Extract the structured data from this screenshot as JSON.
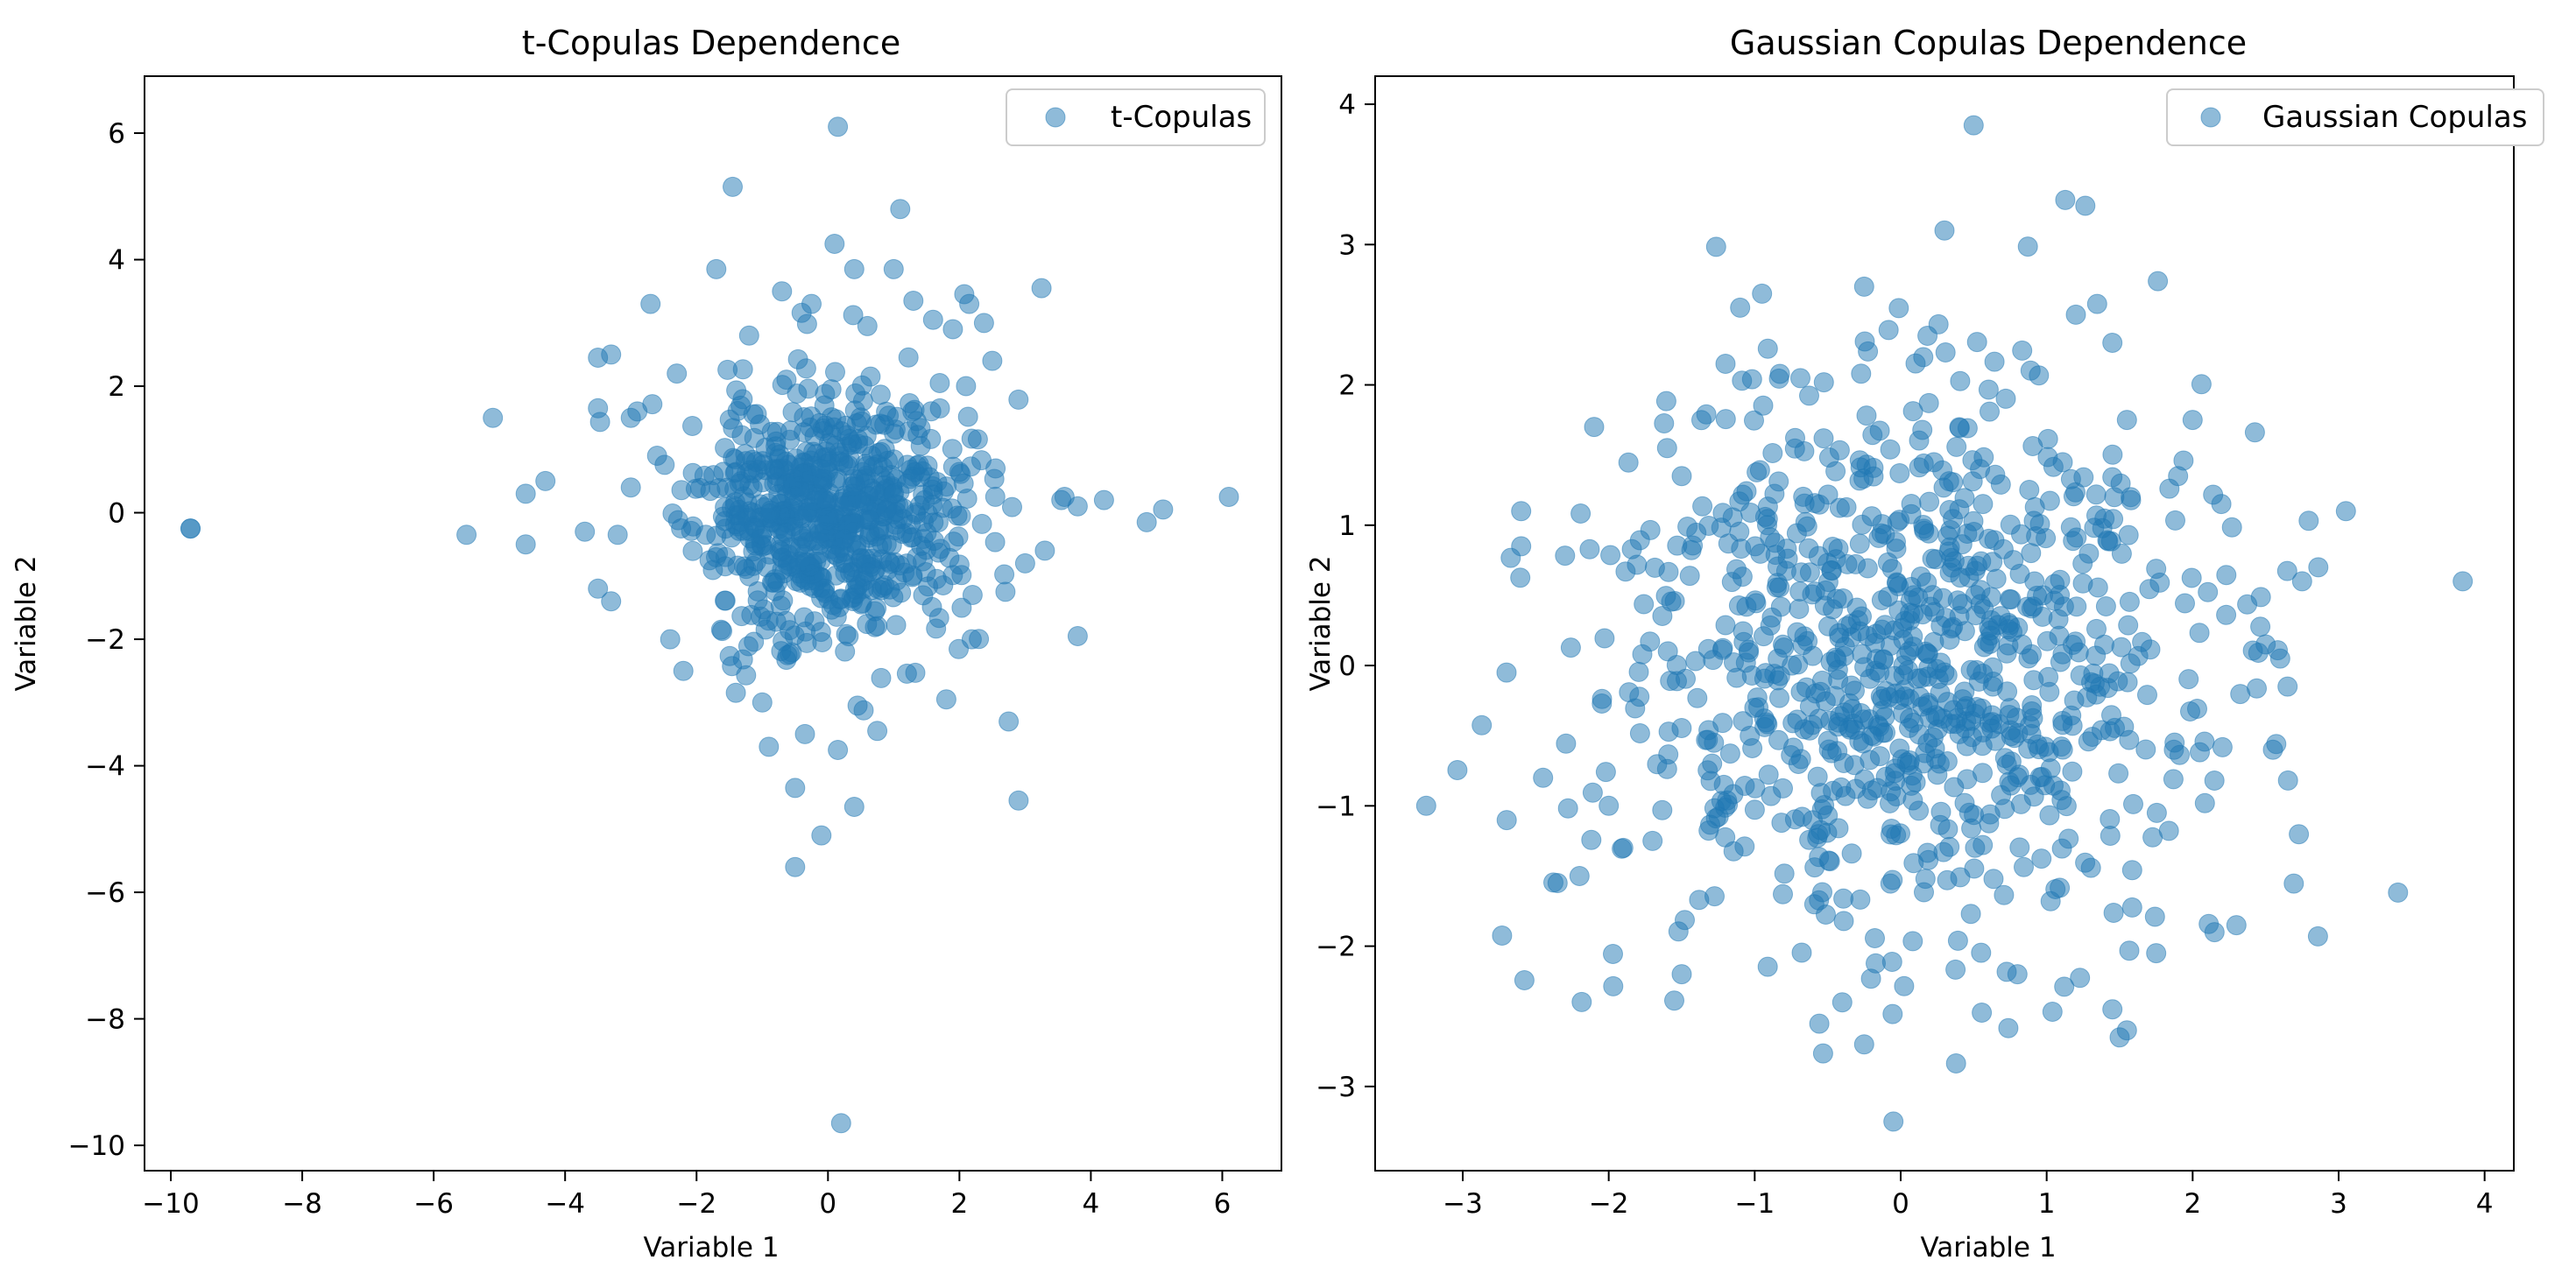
{
  "figure": {
    "background": "#ffffff",
    "marker_color": "#1f77b4",
    "marker_alpha": 0.5
  },
  "chart_data": [
    {
      "type": "scatter",
      "title": "t-Copulas Dependence",
      "xlabel": "Variable 1",
      "ylabel": "Variable 2",
      "xlim": [
        -10.4,
        6.9
      ],
      "ylim": [
        -10.4,
        6.9
      ],
      "xticks": [
        -10,
        -8,
        -6,
        -4,
        -2,
        0,
        2,
        4,
        6
      ],
      "yticks": [
        -10,
        -8,
        -6,
        -4,
        -2,
        0,
        2,
        4,
        6
      ],
      "xtick_labels": [
        "−10",
        "−8",
        "−6",
        "−4",
        "−2",
        "0",
        "2",
        "4",
        "6"
      ],
      "ytick_labels": [
        "−10",
        "−8",
        "−6",
        "−4",
        "−2",
        "0",
        "2",
        "4",
        "6"
      ],
      "grid": false,
      "legend_position": "upper right",
      "series": [
        {
          "name": "t-Copulas",
          "color": "#1f77b4",
          "points": [
            [
              -9.7,
              -0.25
            ],
            [
              -9.7,
              -0.25
            ],
            [
              0.15,
              6.1
            ],
            [
              -1.45,
              5.15
            ],
            [
              1.1,
              4.8
            ],
            [
              0.1,
              4.25
            ],
            [
              -1.7,
              3.85
            ],
            [
              0.4,
              3.85
            ],
            [
              1.0,
              3.85
            ],
            [
              -2.7,
              3.3
            ],
            [
              3.25,
              3.55
            ],
            [
              2.15,
              3.3
            ],
            [
              -3.3,
              2.5
            ],
            [
              -3.5,
              2.45
            ],
            [
              -5.1,
              1.5
            ],
            [
              -4.6,
              0.3
            ],
            [
              -4.3,
              0.5
            ],
            [
              -4.6,
              -0.5
            ],
            [
              -5.5,
              -0.35
            ],
            [
              -3.7,
              -0.3
            ],
            [
              -3.5,
              -1.2
            ],
            [
              -3.3,
              -1.4
            ],
            [
              -3.5,
              1.65
            ],
            [
              -3.0,
              1.5
            ],
            [
              -2.3,
              2.2
            ],
            [
              3.6,
              0.25
            ],
            [
              4.2,
              0.2
            ],
            [
              3.8,
              0.1
            ],
            [
              6.1,
              0.25
            ],
            [
              4.85,
              -0.15
            ],
            [
              5.1,
              0.05
            ],
            [
              3.8,
              -1.95
            ],
            [
              2.75,
              -3.3
            ],
            [
              2.9,
              -4.55
            ],
            [
              0.4,
              -4.65
            ],
            [
              0.15,
              -3.75
            ],
            [
              -0.35,
              -3.5
            ],
            [
              -0.5,
              -4.35
            ],
            [
              -0.5,
              -5.6
            ],
            [
              -0.1,
              -5.1
            ],
            [
              0.2,
              -9.65
            ],
            [
              -0.9,
              -3.7
            ],
            [
              1.8,
              -2.95
            ],
            [
              2.1,
              2.0
            ],
            [
              2.5,
              2.4
            ],
            [
              1.3,
              3.35
            ],
            [
              -0.25,
              3.3
            ],
            [
              -0.7,
              3.5
            ],
            [
              0.6,
              2.95
            ],
            [
              1.6,
              3.05
            ],
            [
              -2.2,
              -2.5
            ],
            [
              -2.4,
              -2.0
            ],
            [
              -1.0,
              -3.0
            ],
            [
              0.75,
              -3.45
            ],
            [
              0.45,
              -3.05
            ],
            [
              -3.2,
              -0.35
            ],
            [
              -3.0,
              0.4
            ],
            [
              2.7,
              -1.25
            ],
            [
              3.0,
              -0.8
            ],
            [
              2.55,
              0.7
            ],
            [
              3.3,
              -0.6
            ],
            [
              3.55,
              0.2
            ],
            [
              2.2,
              -1.3
            ],
            [
              -2.6,
              0.9
            ],
            [
              -2.9,
              1.6
            ],
            [
              1.9,
              2.9
            ],
            [
              -1.2,
              2.8
            ]
          ],
          "core_clusters": [
            {
              "cx": 0.0,
              "cy": 0.0,
              "sx": 1.0,
              "sy": 1.0,
              "n": 700,
              "seed": 11
            }
          ]
        }
      ]
    },
    {
      "type": "scatter",
      "title": "Gaussian Copulas Dependence",
      "xlabel": "Variable 1",
      "ylabel": "Variable 2",
      "xlim": [
        -3.6,
        4.2
      ],
      "ylim": [
        -3.6,
        4.2
      ],
      "xticks": [
        -3,
        -2,
        -1,
        0,
        1,
        2,
        3,
        4
      ],
      "yticks": [
        -3,
        -2,
        -1,
        0,
        1,
        2,
        3,
        4
      ],
      "xtick_labels": [
        "−3",
        "−2",
        "−1",
        "0",
        "1",
        "2",
        "3",
        "4"
      ],
      "ytick_labels": [
        "−3",
        "−2",
        "−1",
        "0",
        "1",
        "2",
        "3",
        "4"
      ],
      "grid": false,
      "legend_position": "upper right",
      "series": [
        {
          "name": "Gaussian Copulas",
          "color": "#1f77b4",
          "points": [
            [
              0.5,
              3.85
            ],
            [
              0.3,
              3.1
            ],
            [
              -0.95,
              2.65
            ],
            [
              -1.1,
              2.55
            ],
            [
              -0.25,
              2.7
            ],
            [
              1.2,
              2.5
            ],
            [
              1.45,
              2.3
            ],
            [
              -2.6,
              1.1
            ],
            [
              -2.6,
              0.85
            ],
            [
              -2.1,
              1.7
            ],
            [
              3.85,
              0.6
            ],
            [
              3.05,
              1.1
            ],
            [
              2.75,
              0.6
            ],
            [
              2.0,
              1.75
            ],
            [
              2.3,
              -1.85
            ],
            [
              2.15,
              -1.9
            ],
            [
              -2.7,
              -0.05
            ],
            [
              -3.25,
              -1.0
            ],
            [
              -2.45,
              -0.8
            ],
            [
              -2.35,
              -1.55
            ],
            [
              -2.2,
              -1.5
            ],
            [
              -1.5,
              -2.2
            ],
            [
              -0.25,
              -2.7
            ],
            [
              -0.05,
              -3.25
            ],
            [
              1.45,
              -2.45
            ],
            [
              1.5,
              -2.65
            ],
            [
              1.55,
              -2.6
            ],
            [
              1.75,
              -2.05
            ],
            [
              0.8,
              -2.2
            ],
            [
              -0.4,
              -2.4
            ],
            [
              2.6,
              0.05
            ],
            [
              2.5,
              0.15
            ],
            [
              2.65,
              -0.15
            ],
            [
              2.55,
              -0.6
            ],
            [
              -2.0,
              -1.0
            ],
            [
              -1.9,
              -1.3
            ],
            [
              -1.7,
              -1.25
            ],
            [
              -1.6,
              1.55
            ],
            [
              -1.5,
              1.35
            ],
            [
              -1.2,
              2.15
            ],
            [
              1.9,
              1.35
            ],
            [
              1.55,
              1.75
            ]
          ],
          "core_clusters": [
            {
              "cx": 0.0,
              "cy": 0.0,
              "sx": 1.0,
              "sy": 1.0,
              "n": 900,
              "seed": 23
            }
          ]
        }
      ]
    }
  ]
}
